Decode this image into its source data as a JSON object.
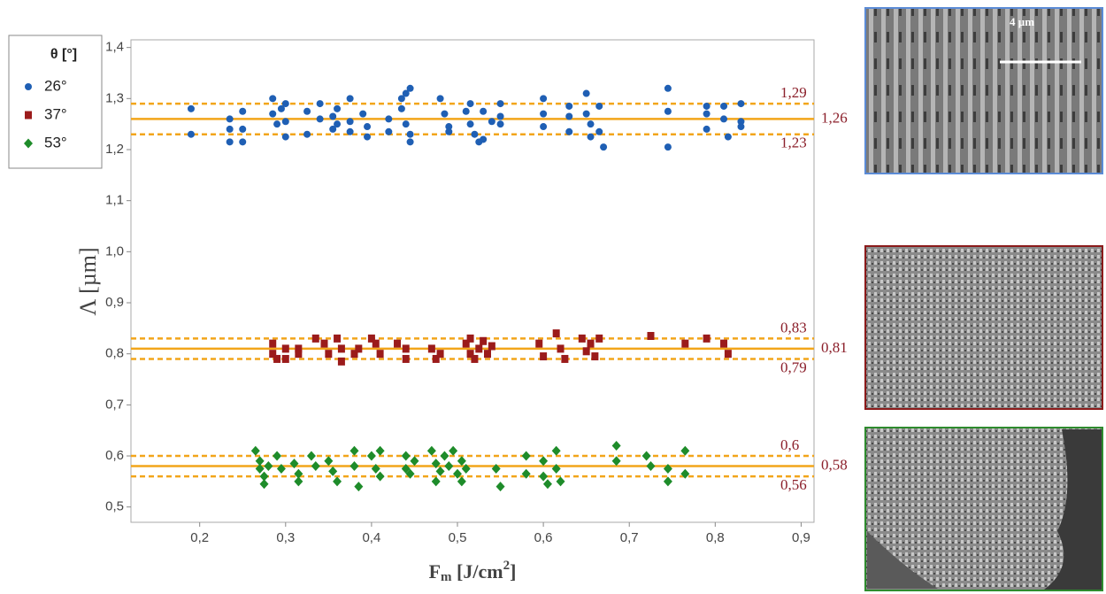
{
  "chart_data": {
    "type": "scatter",
    "xlabel": [
      "F",
      "m",
      " [J/cm",
      "2",
      "]"
    ],
    "ylabel": "Λ [µm]",
    "legend_title": "θ [°]",
    "xlim": [
      0.12,
      0.915
    ],
    "ylim": [
      0.47,
      1.415
    ],
    "xticks": [
      {
        "value": 0.2,
        "label": "0,2"
      },
      {
        "value": 0.3,
        "label": "0,3"
      },
      {
        "value": 0.4,
        "label": "0,4"
      },
      {
        "value": 0.5,
        "label": "0,5"
      },
      {
        "value": 0.6,
        "label": "0,6"
      },
      {
        "value": 0.7,
        "label": "0,7"
      },
      {
        "value": 0.8,
        "label": "0,8"
      },
      {
        "value": 0.9,
        "label": "0,9"
      }
    ],
    "yticks": [
      {
        "value": 0.5,
        "label": "0,5"
      },
      {
        "value": 0.6,
        "label": "0,6"
      },
      {
        "value": 0.7,
        "label": "0,7"
      },
      {
        "value": 0.8,
        "label": "0,8"
      },
      {
        "value": 0.9,
        "label": "0,9"
      },
      {
        "value": 1.0,
        "label": "1,0"
      },
      {
        "value": 1.1,
        "label": "1,1"
      },
      {
        "value": 1.2,
        "label": "1,2"
      },
      {
        "value": 1.3,
        "label": "1,3"
      },
      {
        "value": 1.4,
        "label": "1,4"
      }
    ],
    "band_color": "#f2a51a",
    "bands": [
      {
        "center": {
          "value": 1.26,
          "label": "1,26"
        },
        "upper": {
          "value": 1.29,
          "label": "1,29"
        },
        "lower": {
          "value": 1.23,
          "label": "1,23"
        }
      },
      {
        "center": {
          "value": 0.81,
          "label": "0,81"
        },
        "upper": {
          "value": 0.83,
          "label": "0,83"
        },
        "lower": {
          "value": 0.79,
          "label": "0,79"
        }
      },
      {
        "center": {
          "value": 0.58,
          "label": "0,58"
        },
        "upper": {
          "value": 0.6,
          "label": "0,6"
        },
        "lower": {
          "value": 0.56,
          "label": "0,56"
        }
      }
    ],
    "scale_bar_label": "4 µm",
    "series": [
      {
        "name": "26°",
        "color": "#1f5fb4",
        "marker": "circle",
        "x": [
          0.19,
          0.19,
          0.235,
          0.235,
          0.235,
          0.25,
          0.25,
          0.25,
          0.285,
          0.285,
          0.29,
          0.295,
          0.3,
          0.3,
          0.3,
          0.325,
          0.325,
          0.34,
          0.34,
          0.355,
          0.355,
          0.36,
          0.36,
          0.375,
          0.375,
          0.375,
          0.39,
          0.395,
          0.395,
          0.42,
          0.42,
          0.435,
          0.435,
          0.44,
          0.44,
          0.445,
          0.445,
          0.445,
          0.48,
          0.485,
          0.49,
          0.49,
          0.51,
          0.515,
          0.515,
          0.52,
          0.525,
          0.53,
          0.53,
          0.54,
          0.55,
          0.55,
          0.55,
          0.6,
          0.6,
          0.6,
          0.63,
          0.63,
          0.63,
          0.65,
          0.65,
          0.655,
          0.655,
          0.665,
          0.665,
          0.67,
          0.745,
          0.745,
          0.745,
          0.79,
          0.79,
          0.79,
          0.81,
          0.81,
          0.815,
          0.83,
          0.83,
          0.83
        ],
        "values": [
          1.28,
          1.23,
          1.26,
          1.24,
          1.215,
          1.275,
          1.24,
          1.215,
          1.3,
          1.27,
          1.25,
          1.28,
          1.29,
          1.255,
          1.225,
          1.275,
          1.23,
          1.29,
          1.26,
          1.265,
          1.24,
          1.28,
          1.25,
          1.3,
          1.255,
          1.235,
          1.27,
          1.245,
          1.225,
          1.26,
          1.235,
          1.3,
          1.28,
          1.31,
          1.25,
          1.32,
          1.23,
          1.215,
          1.3,
          1.27,
          1.245,
          1.235,
          1.275,
          1.29,
          1.25,
          1.23,
          1.215,
          1.275,
          1.22,
          1.255,
          1.29,
          1.265,
          1.25,
          1.3,
          1.27,
          1.245,
          1.285,
          1.265,
          1.235,
          1.31,
          1.27,
          1.25,
          1.225,
          1.285,
          1.235,
          1.205,
          1.32,
          1.275,
          1.205,
          1.285,
          1.27,
          1.24,
          1.285,
          1.26,
          1.225,
          1.29,
          1.255,
          1.245
        ]
      },
      {
        "name": "37°",
        "color": "#9b1b1b",
        "marker": "square",
        "x": [
          0.285,
          0.285,
          0.29,
          0.3,
          0.3,
          0.315,
          0.315,
          0.335,
          0.345,
          0.35,
          0.36,
          0.365,
          0.365,
          0.38,
          0.385,
          0.4,
          0.405,
          0.41,
          0.43,
          0.44,
          0.44,
          0.47,
          0.475,
          0.48,
          0.51,
          0.515,
          0.515,
          0.52,
          0.525,
          0.53,
          0.535,
          0.54,
          0.595,
          0.6,
          0.615,
          0.62,
          0.625,
          0.645,
          0.65,
          0.655,
          0.66,
          0.665,
          0.725,
          0.765,
          0.79,
          0.81,
          0.815
        ],
        "values": [
          0.82,
          0.8,
          0.79,
          0.81,
          0.79,
          0.81,
          0.8,
          0.83,
          0.82,
          0.8,
          0.83,
          0.81,
          0.785,
          0.8,
          0.81,
          0.83,
          0.82,
          0.8,
          0.82,
          0.81,
          0.79,
          0.81,
          0.79,
          0.8,
          0.82,
          0.83,
          0.8,
          0.79,
          0.81,
          0.825,
          0.8,
          0.815,
          0.82,
          0.795,
          0.84,
          0.81,
          0.79,
          0.83,
          0.805,
          0.82,
          0.795,
          0.83,
          0.835,
          0.82,
          0.83,
          0.82,
          0.8
        ]
      },
      {
        "name": "53°",
        "color": "#1e8c2a",
        "marker": "diamond",
        "x": [
          0.265,
          0.27,
          0.27,
          0.275,
          0.275,
          0.28,
          0.29,
          0.295,
          0.31,
          0.315,
          0.315,
          0.33,
          0.335,
          0.35,
          0.355,
          0.36,
          0.38,
          0.38,
          0.385,
          0.4,
          0.405,
          0.41,
          0.41,
          0.44,
          0.44,
          0.445,
          0.45,
          0.47,
          0.475,
          0.475,
          0.48,
          0.485,
          0.49,
          0.495,
          0.5,
          0.505,
          0.505,
          0.51,
          0.545,
          0.55,
          0.58,
          0.58,
          0.6,
          0.6,
          0.605,
          0.615,
          0.615,
          0.62,
          0.685,
          0.685,
          0.72,
          0.725,
          0.745,
          0.745,
          0.765,
          0.765
        ],
        "values": [
          0.61,
          0.59,
          0.575,
          0.56,
          0.545,
          0.58,
          0.6,
          0.575,
          0.585,
          0.565,
          0.55,
          0.6,
          0.58,
          0.59,
          0.57,
          0.55,
          0.61,
          0.58,
          0.54,
          0.6,
          0.575,
          0.61,
          0.56,
          0.6,
          0.575,
          0.565,
          0.59,
          0.61,
          0.585,
          0.55,
          0.57,
          0.6,
          0.58,
          0.61,
          0.565,
          0.59,
          0.55,
          0.575,
          0.575,
          0.54,
          0.6,
          0.565,
          0.59,
          0.56,
          0.545,
          0.61,
          0.575,
          0.55,
          0.62,
          0.59,
          0.6,
          0.58,
          0.575,
          0.55,
          0.61,
          0.565
        ]
      }
    ]
  }
}
